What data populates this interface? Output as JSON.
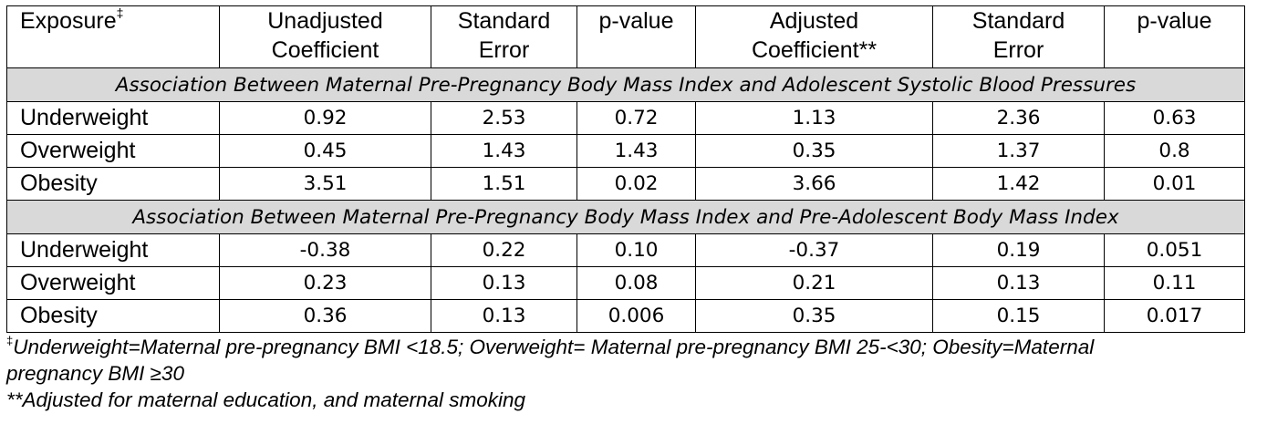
{
  "table": {
    "headers": [
      {
        "text": "Exposure",
        "sup": "‡"
      },
      {
        "line1": "Unadjusted",
        "line2": "Coefficient"
      },
      {
        "line1": "Standard",
        "line2": "Error"
      },
      {
        "line1": "p-value",
        "line2": ""
      },
      {
        "line1": "Adjusted",
        "line2": "Coefficient**"
      },
      {
        "line1": "Standard",
        "line2": "Error"
      },
      {
        "line1": "p-value",
        "line2": ""
      }
    ],
    "sections": [
      {
        "title": "Association Between Maternal Pre-Pregnancy Body Mass Index and Adolescent Systolic Blood Pressures",
        "rows": [
          [
            "Underweight",
            "0.92",
            "2.53",
            "0.72",
            "1.13",
            "2.36",
            "0.63"
          ],
          [
            "Overweight",
            "0.45",
            "1.43",
            "1.43",
            "0.35",
            "1.37",
            "0.8"
          ],
          [
            "Obesity",
            "3.51",
            "1.51",
            "0.02",
            "3.66",
            "1.42",
            "0.01"
          ]
        ]
      },
      {
        "title": "Association Between Maternal Pre-Pregnancy Body Mass Index and Pre-Adolescent Body Mass Index",
        "rows": [
          [
            "Underweight",
            "-0.38",
            "0.22",
            "0.10",
            "-0.37",
            "0.19",
            "0.051"
          ],
          [
            "Overweight",
            "0.23",
            "0.13",
            "0.08",
            "0.21",
            "0.13",
            "0.11"
          ],
          [
            "Obesity",
            "0.36",
            "0.13",
            "0.006",
            "0.35",
            "0.15",
            "0.017"
          ]
        ]
      }
    ]
  },
  "footnotes": {
    "first_mark": "‡",
    "first_text_line1": "Underweight=Maternal pre-pregnancy BMI <18.5; Overweight= Maternal pre-pregnancy BMI 25-<30; Obesity=Maternal",
    "first_text_line2": "pregnancy BMI ≥30",
    "second_text": "**Adjusted for maternal education, and maternal smoking"
  }
}
